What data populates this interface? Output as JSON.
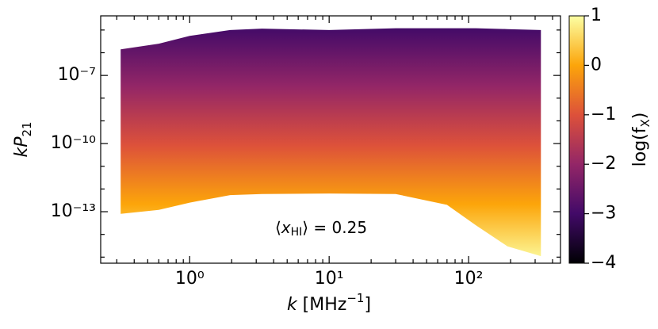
{
  "chart_data": {
    "type": "band",
    "x": [
      0.32,
      0.6,
      1,
      1.95,
      3.3,
      10,
      30,
      70,
      113,
      190,
      330
    ],
    "upper": [
      1.4e-06,
      2.5e-06,
      5.5e-06,
      1e-05,
      1.15e-05,
      1e-05,
      1.2e-05,
      1.2e-05,
      1.2e-05,
      1.1e-05,
      1e-05
    ],
    "lower": [
      8e-14,
      1.2e-13,
      2.5e-13,
      5.4e-13,
      6e-13,
      6.3e-13,
      6e-13,
      2e-13,
      2.5e-14,
      3e-15,
      1.1e-15
    ],
    "xlog": true,
    "ylog": true,
    "xlim": [
      0.23,
      456
    ],
    "ylim": [
      5.4e-16,
      4.2e-05
    ],
    "xticks": [
      {
        "value": 1,
        "label": "10⁰"
      },
      {
        "value": 10,
        "label": "10¹"
      },
      {
        "value": 100,
        "label": "10²"
      }
    ],
    "xminorticks": [
      0.3,
      0.4,
      0.5,
      0.6,
      0.7,
      0.8,
      0.9,
      2,
      3,
      4,
      5,
      6,
      7,
      8,
      9,
      20,
      30,
      40,
      50,
      60,
      70,
      80,
      90,
      200,
      300,
      400
    ],
    "yticks": [
      {
        "value": 1e-07,
        "label": "10⁻⁷"
      },
      {
        "value": 1e-10,
        "label": "10⁻¹⁰"
      },
      {
        "value": 1e-13,
        "label": "10⁻¹³"
      }
    ],
    "yminorticks": [
      1e-05,
      1e-06,
      1e-08,
      1e-09,
      1e-11,
      1e-12,
      1e-14,
      1e-15
    ],
    "x_label": {
      "main": "k",
      "unit": " [MHz",
      "sup": "−1",
      "close": "]"
    },
    "y_label": {
      "main": "kP",
      "sub": "21"
    },
    "annotation": {
      "open": "⟨",
      "var": "x",
      "sub": "HI",
      "close": "⟩ = 0.25"
    },
    "colorbar": {
      "label": {
        "main": "log(f",
        "sub": "X",
        "close": ")"
      },
      "lim": [
        -4,
        1
      ],
      "ticks": [
        {
          "value": -4,
          "label": "−4"
        },
        {
          "value": -3,
          "label": "−3"
        },
        {
          "value": -2,
          "label": "−2"
        },
        {
          "value": -1,
          "label": "−1"
        },
        {
          "value": 0,
          "label": "0"
        },
        {
          "value": 1,
          "label": "1"
        }
      ],
      "colormap": [
        "#000004",
        "#420a68",
        "#932667",
        "#dd513a",
        "#fca50a",
        "#fcffa4"
      ]
    }
  }
}
